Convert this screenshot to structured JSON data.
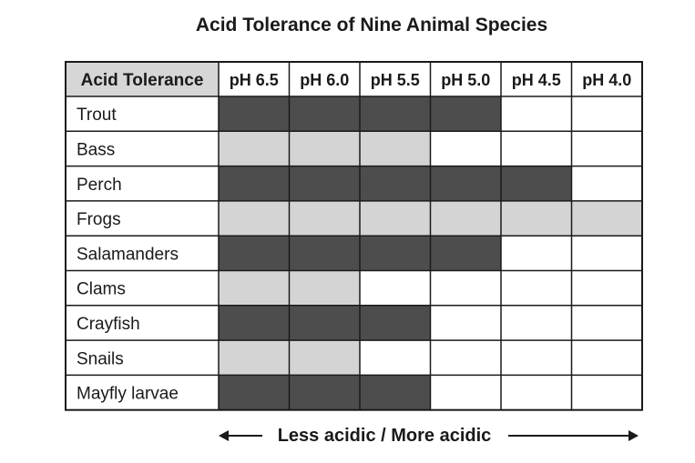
{
  "chart_data": {
    "type": "table",
    "title": "Acid Tolerance of Nine Animal Species",
    "corner_label": "Acid Tolerance",
    "columns": [
      "pH 6.5",
      "pH 6.0",
      "pH 5.5",
      "pH 5.0",
      "pH 4.5",
      "pH 4.0"
    ],
    "rows": [
      {
        "name": "Trout",
        "tolerated": [
          1,
          1,
          1,
          1,
          0,
          0
        ]
      },
      {
        "name": "Bass",
        "tolerated": [
          1,
          1,
          1,
          0,
          0,
          0
        ]
      },
      {
        "name": "Perch",
        "tolerated": [
          1,
          1,
          1,
          1,
          1,
          0
        ]
      },
      {
        "name": "Frogs",
        "tolerated": [
          1,
          1,
          1,
          1,
          1,
          1
        ]
      },
      {
        "name": "Salamanders",
        "tolerated": [
          1,
          1,
          1,
          1,
          0,
          0
        ]
      },
      {
        "name": "Clams",
        "tolerated": [
          1,
          1,
          0,
          0,
          0,
          0
        ]
      },
      {
        "name": "Crayfish",
        "tolerated": [
          1,
          1,
          1,
          0,
          0,
          0
        ]
      },
      {
        "name": "Snails",
        "tolerated": [
          1,
          1,
          0,
          0,
          0,
          0
        ]
      },
      {
        "name": "Mayfly larvae",
        "tolerated": [
          1,
          1,
          1,
          0,
          0,
          0
        ]
      }
    ],
    "footer": "Less acidic / More acidic",
    "colors": {
      "dark_fill": "#4d4d4d",
      "light_fill": "#d4d4d4",
      "header_fill": "#d6d6d6",
      "empty_fill": "#ffffff",
      "border": "#1a1a1a"
    }
  }
}
